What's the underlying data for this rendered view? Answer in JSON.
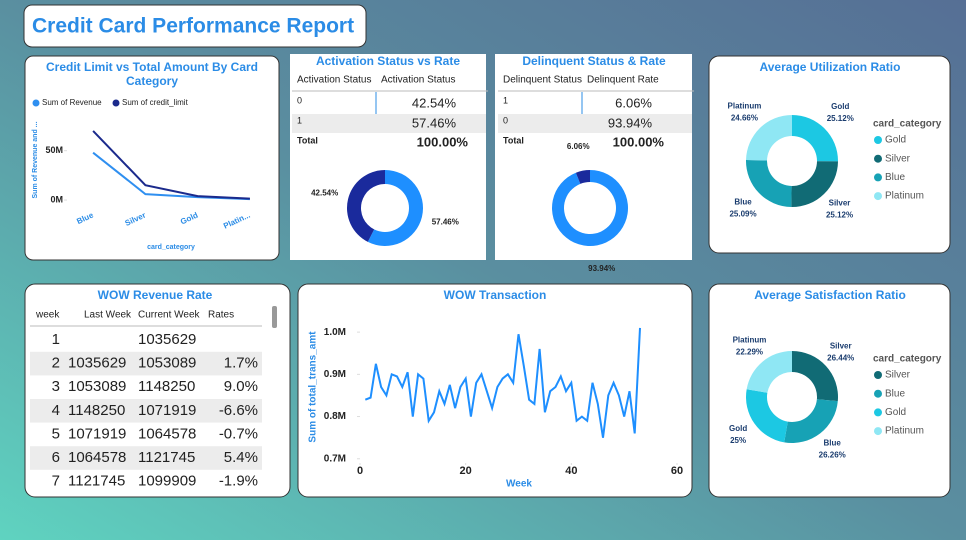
{
  "title": "Credit Card Performance Report",
  "chart_data": [
    {
      "type": "line",
      "title": "Credit Limit vs Total Amount By Card Category",
      "x_label": "card_category",
      "y_label": "Sum of Revenue and ...",
      "categories": [
        "Blue",
        "Silver",
        "Gold",
        "Platin..."
      ],
      "series": [
        {
          "name": "Sum of Revenue",
          "color": "#2f8ff0",
          "values": [
            48000000,
            6000000,
            3000000,
            1000000
          ]
        },
        {
          "name": "Sum of credit_limit",
          "color": "#1b2a8c",
          "values": [
            70000000,
            15000000,
            4000000,
            1500000
          ]
        }
      ],
      "ylim": [
        -5000000,
        76000000
      ],
      "yticks": [
        {
          "value": 0,
          "label": "0M"
        },
        {
          "value": 50000000,
          "label": "50M"
        }
      ],
      "legend": "top-left"
    },
    {
      "type": "donut",
      "values": [
        57.46,
        42.54
      ],
      "value_labels": [
        "57.46%",
        "42.54%"
      ],
      "colors": [
        "#1e8fff",
        "#1a2a9c"
      ]
    },
    {
      "type": "donut",
      "values": [
        93.94,
        6.06
      ],
      "value_labels": [
        "93.94%",
        "6.06%"
      ],
      "colors": [
        "#1e8fff",
        "#1a2a9c"
      ]
    },
    {
      "type": "donut",
      "title": "Average Utilization Ratio",
      "legend_title": "card_category",
      "legend": "right",
      "categories": [
        "Gold",
        "Silver",
        "Blue",
        "Platinum"
      ],
      "values": [
        25.12,
        25.12,
        25.09,
        24.66
      ],
      "value_labels": [
        "25.12%",
        "25.12%",
        "25.09%",
        "24.66%"
      ],
      "colors": [
        "#1cc8e3",
        "#116b75",
        "#17a2b5",
        "#8fe7f4"
      ]
    },
    {
      "type": "line",
      "title": "WOW Transaction",
      "x_label": "Week",
      "y_label": "Sum of total_trans_amt",
      "color": "#1e8fff",
      "x": [
        1,
        2,
        3,
        4,
        5,
        6,
        7,
        8,
        9,
        10,
        11,
        12,
        13,
        14,
        15,
        16,
        17,
        18,
        19,
        20,
        21,
        22,
        23,
        24,
        25,
        26,
        27,
        28,
        29,
        30,
        31,
        32,
        33,
        34,
        35,
        36,
        37,
        38,
        39,
        40,
        41,
        42,
        43,
        44,
        45,
        46,
        47,
        48,
        49,
        50,
        51,
        52,
        53
      ],
      "values": [
        840000,
        845000,
        925000,
        870000,
        850000,
        900000,
        895000,
        870000,
        905000,
        800000,
        900000,
        890000,
        790000,
        810000,
        860000,
        830000,
        875000,
        820000,
        870000,
        890000,
        800000,
        880000,
        900000,
        860000,
        820000,
        870000,
        890000,
        900000,
        880000,
        995000,
        920000,
        840000,
        830000,
        960000,
        810000,
        860000,
        870000,
        895000,
        860000,
        880000,
        790000,
        800000,
        790000,
        880000,
        830000,
        750000,
        850000,
        880000,
        850000,
        800000,
        860000,
        760000,
        1010000
      ],
      "xlim": [
        0,
        60
      ],
      "xticks": [
        0,
        20,
        40,
        60
      ],
      "ylim": [
        690000,
        1050000
      ],
      "yticks": [
        {
          "value": 700000,
          "label": "0.7M"
        },
        {
          "value": 800000,
          "label": "0.8M"
        },
        {
          "value": 900000,
          "label": "0.9M"
        },
        {
          "value": 1000000,
          "label": "1.0M"
        }
      ]
    },
    {
      "type": "donut",
      "title": "Average Satisfaction Ratio",
      "legend_title": "card_category",
      "legend": "right",
      "categories": [
        "Silver",
        "Blue",
        "Gold",
        "Platinum"
      ],
      "values": [
        26.44,
        26.26,
        25,
        22.29
      ],
      "value_labels": [
        "26.44%",
        "26.26%",
        "25%",
        "22.29%"
      ],
      "colors": [
        "#116b75",
        "#17a2b5",
        "#1cc8e3",
        "#8fe7f4"
      ]
    }
  ],
  "tables": [
    {
      "title": "Activation Status vs Rate",
      "columns": [
        "Activation Status",
        "Activation Status"
      ],
      "rows": [
        [
          "0",
          "42.54%"
        ],
        [
          "1",
          "57.46%"
        ]
      ],
      "total": [
        "Total",
        "100.00%"
      ]
    },
    {
      "title": "Delinquent Status & Rate",
      "columns": [
        "Delinquent Status",
        "Delinquent Rate"
      ],
      "rows": [
        [
          "1",
          "6.06%"
        ],
        [
          "0",
          "93.94%"
        ]
      ],
      "total": [
        "Total",
        "100.00%"
      ]
    },
    {
      "title": "WOW Revenue Rate",
      "columns": [
        "week",
        "Last Week",
        "Current Week",
        "Rates"
      ],
      "rows": [
        [
          "1",
          null,
          "1035629",
          null
        ],
        [
          "2",
          "1035629",
          "1053089",
          "1.7%"
        ],
        [
          "3",
          "1053089",
          "1148250",
          "9.0%"
        ],
        [
          "4",
          "1148250",
          "1071919",
          "-6.6%"
        ],
        [
          "5",
          "1071919",
          "1064578",
          "-0.7%"
        ],
        [
          "6",
          "1064578",
          "1121745",
          "5.4%"
        ],
        [
          "7",
          "1121745",
          "1099909",
          "-1.9%"
        ]
      ]
    }
  ]
}
